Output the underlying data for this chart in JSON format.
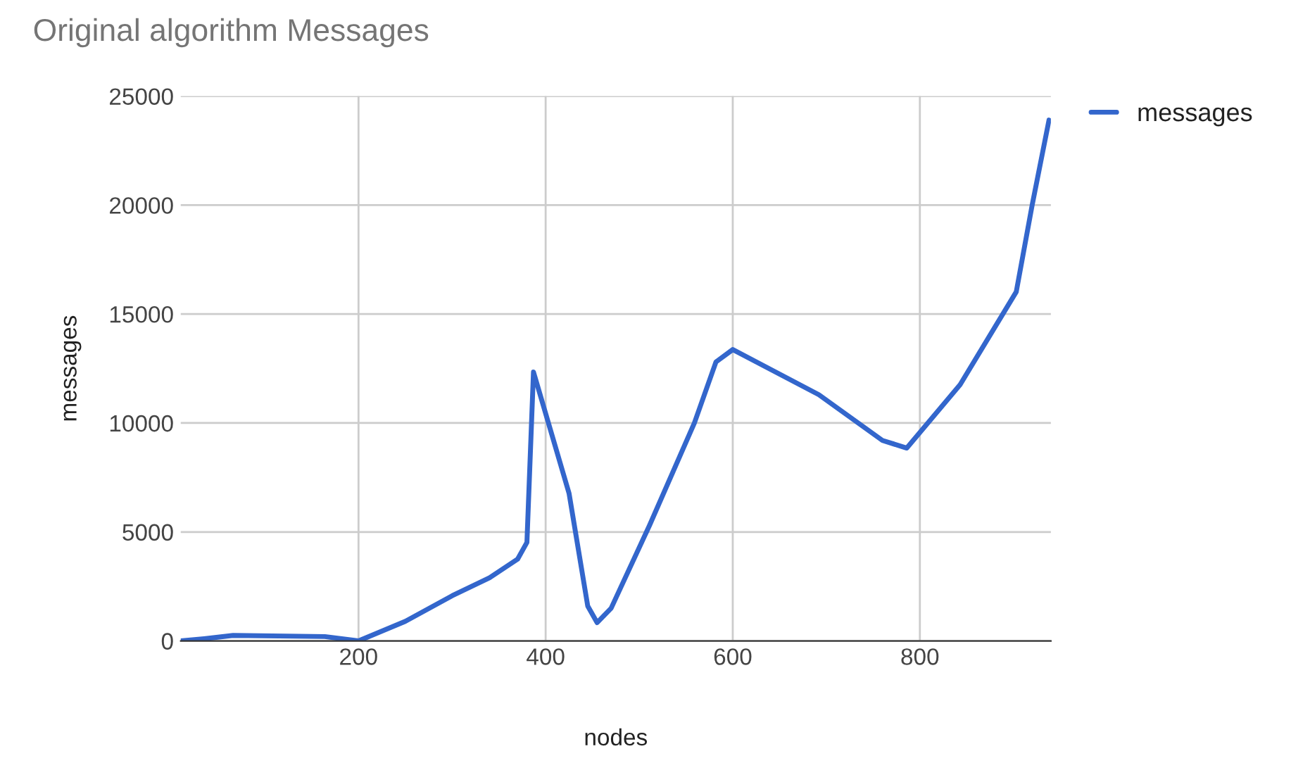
{
  "chart_data": {
    "type": "line",
    "title": "Original algorithm Messages",
    "xlabel": "nodes",
    "ylabel": "messages",
    "series": [
      {
        "name": "messages",
        "color": "#3366cc",
        "x": [
          10,
          35,
          66,
          164,
          200,
          250,
          300,
          340,
          370,
          380,
          387,
          425,
          445,
          455,
          470,
          511,
          559,
          582,
          600,
          692,
          760,
          786,
          843,
          903,
          920,
          938
        ],
        "values": [
          0,
          100,
          250,
          200,
          0,
          900,
          2070,
          2900,
          3750,
          4520,
          12340,
          6780,
          1600,
          840,
          1500,
          5300,
          10000,
          12800,
          13370,
          11300,
          9200,
          8850,
          11760,
          16020,
          20000,
          23900
        ]
      }
    ],
    "xlim": [
      10,
      940
    ],
    "xticks": [
      200,
      400,
      600,
      800
    ],
    "ylim": [
      0,
      25000
    ],
    "yticks": [
      0,
      5000,
      10000,
      15000,
      20000,
      25000
    ],
    "grid": true,
    "legend": "top right",
    "line_style": "solid",
    "marker": "none"
  }
}
